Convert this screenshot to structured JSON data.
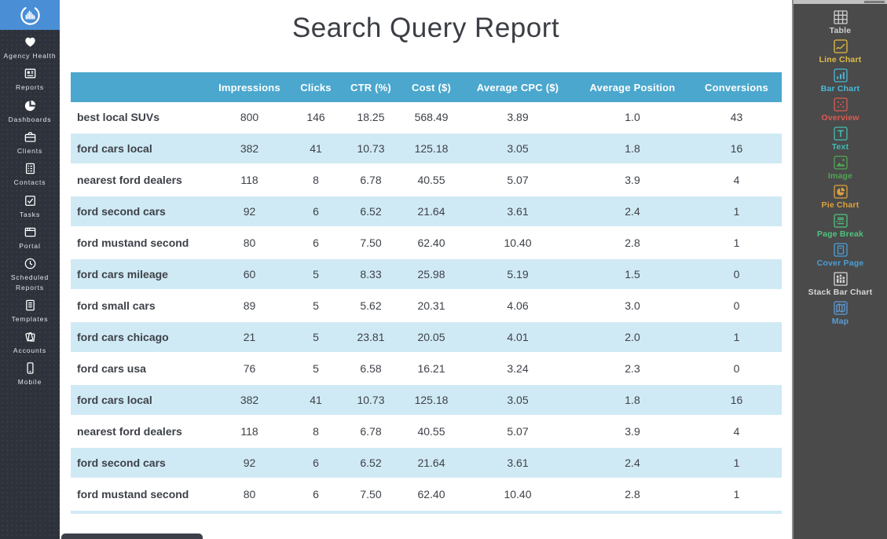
{
  "theme": {
    "header_bg": "#4ba7cd",
    "alt_row_bg": "#d0eaf5",
    "logo_bg": "#4a8ed6",
    "left_sidebar_bg": "#2d323b",
    "right_panel_bg": "#4a4a4a"
  },
  "left_sidebar": {
    "logo_icon": "circular-bars-logo-icon",
    "items": [
      {
        "label": "Agency Health",
        "icon": "heart-icon"
      },
      {
        "label": "Reports",
        "icon": "report-icon"
      },
      {
        "label": "Dashboards",
        "icon": "pie-icon"
      },
      {
        "label": "Clients",
        "icon": "briefcase-icon"
      },
      {
        "label": "Contacts",
        "icon": "contact-card-icon"
      },
      {
        "label": "Tasks",
        "icon": "task-check-icon"
      },
      {
        "label": "Portal",
        "icon": "browser-icon"
      },
      {
        "label": "Scheduled Reports",
        "icon": "clock-icon"
      },
      {
        "label": "Templates",
        "icon": "document-icon"
      },
      {
        "label": "Accounts",
        "icon": "pages-icon"
      },
      {
        "label": "Mobile",
        "icon": "phone-icon"
      }
    ]
  },
  "report": {
    "title": "Search Query Report",
    "table": {
      "columns": [
        "",
        "Impressions",
        "Clicks",
        "CTR (%)",
        "Cost ($)",
        "Average CPC ($)",
        "Average Position",
        "Conversions"
      ],
      "rows": [
        {
          "query": "best local SUVs",
          "values": [
            "800",
            "146",
            "18.25",
            "568.49",
            "3.89",
            "1.0",
            "43"
          ]
        },
        {
          "query": "ford cars local",
          "values": [
            "382",
            "41",
            "10.73",
            "125.18",
            "3.05",
            "1.8",
            "16"
          ]
        },
        {
          "query": "nearest ford dealers",
          "values": [
            "118",
            "8",
            "6.78",
            "40.55",
            "5.07",
            "3.9",
            "4"
          ]
        },
        {
          "query": "ford second cars",
          "values": [
            "92",
            "6",
            "6.52",
            "21.64",
            "3.61",
            "2.4",
            "1"
          ]
        },
        {
          "query": "ford mustand second",
          "values": [
            "80",
            "6",
            "7.50",
            "62.40",
            "10.40",
            "2.8",
            "1"
          ]
        },
        {
          "query": "ford cars mileage",
          "values": [
            "60",
            "5",
            "8.33",
            "25.98",
            "5.19",
            "1.5",
            "0"
          ]
        },
        {
          "query": "ford small cars",
          "values": [
            "89",
            "5",
            "5.62",
            "20.31",
            "4.06",
            "3.0",
            "0"
          ]
        },
        {
          "query": "ford cars chicago",
          "values": [
            "21",
            "5",
            "23.81",
            "20.05",
            "4.01",
            "2.0",
            "1"
          ]
        },
        {
          "query": "ford cars usa",
          "values": [
            "76",
            "5",
            "6.58",
            "16.21",
            "3.24",
            "2.3",
            "0"
          ]
        },
        {
          "query": "ford cars local",
          "values": [
            "382",
            "41",
            "10.73",
            "125.18",
            "3.05",
            "1.8",
            "16"
          ]
        },
        {
          "query": "nearest ford dealers",
          "values": [
            "118",
            "8",
            "6.78",
            "40.55",
            "5.07",
            "3.9",
            "4"
          ]
        },
        {
          "query": "ford second cars",
          "values": [
            "92",
            "6",
            "6.52",
            "21.64",
            "3.61",
            "2.4",
            "1"
          ]
        },
        {
          "query": "ford mustand second",
          "values": [
            "80",
            "6",
            "7.50",
            "62.40",
            "10.40",
            "2.8",
            "1"
          ]
        }
      ]
    }
  },
  "right_panel": {
    "items": [
      {
        "label": "Table",
        "icon": "table-icon",
        "color": "#cfcfcf"
      },
      {
        "label": "Line Chart",
        "icon": "line-chart-icon",
        "color": "#e3bd45"
      },
      {
        "label": "Bar Chart",
        "icon": "bar-chart-icon",
        "color": "#48b9d9"
      },
      {
        "label": "Overview",
        "icon": "overview-dots-icon",
        "color": "#dd5a52"
      },
      {
        "label": "Text",
        "icon": "text-icon",
        "color": "#41bdb3"
      },
      {
        "label": "Image",
        "icon": "image-icon",
        "color": "#4fa653"
      },
      {
        "label": "Pie Chart",
        "icon": "pie-chart-icon",
        "color": "#dfa13f"
      },
      {
        "label": "Page Break",
        "icon": "page-break-icon",
        "color": "#4fc480"
      },
      {
        "label": "Cover Page",
        "icon": "cover-page-icon",
        "color": "#4b9fd8"
      },
      {
        "label": "Stack Bar Chart",
        "icon": "stack-bar-chart-icon",
        "color": "#d6d6d6"
      },
      {
        "label": "Map",
        "icon": "map-icon",
        "color": "#5e9bd4"
      }
    ]
  }
}
